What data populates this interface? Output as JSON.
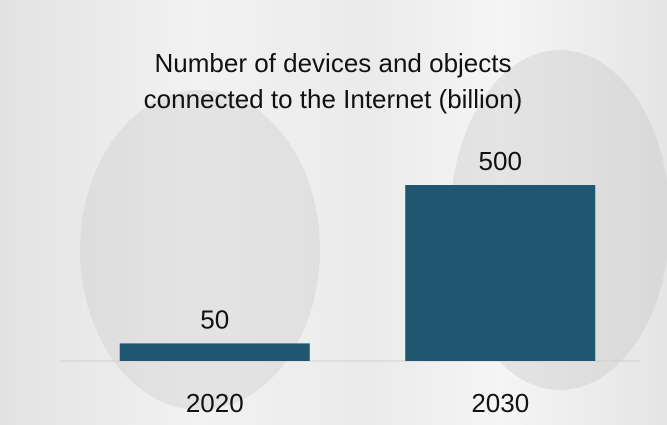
{
  "chart_data": {
    "type": "bar",
    "title": "Number of devices and objects connected to the Internet (billion)",
    "categories": [
      "2020",
      "2030"
    ],
    "values": [
      50,
      500
    ],
    "color": "#1f5670"
  }
}
